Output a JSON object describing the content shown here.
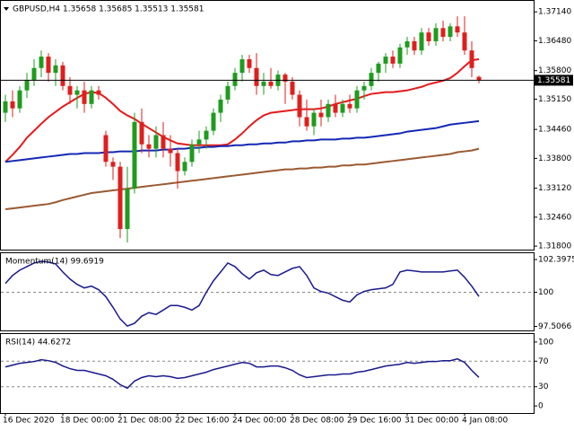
{
  "chart_data": [
    {
      "type": "candlestick",
      "title": "GBPUSD,H4  1.35658 1.35685 1.35513 1.35581",
      "categories": [
        "16 Dec 2020",
        null,
        null,
        null,
        null,
        null,
        null,
        null,
        "18 Dec 00:00",
        null,
        null,
        null,
        null,
        null,
        null,
        null,
        "21 Dec 08:00",
        null,
        null,
        null,
        null,
        null,
        null,
        null,
        "22 Dec 16:00",
        null,
        null,
        null,
        null,
        null,
        null,
        null,
        "24 Dec 00:00",
        null,
        null,
        null,
        null,
        null,
        null,
        null,
        "28 Dec 08:00",
        null,
        null,
        null,
        null,
        null,
        null,
        null,
        "29 Dec 16:00",
        null,
        null,
        null,
        null,
        null,
        null,
        null,
        "31 Dec 00:00",
        null,
        null,
        null,
        null,
        null,
        null,
        null,
        "4 Jan 08:00",
        null,
        null
      ],
      "open": [
        1.3484,
        1.351,
        1.3494,
        1.3535,
        1.3559,
        1.3586,
        1.3612,
        1.3575,
        1.3592,
        1.3545,
        1.3525,
        1.3535,
        1.3504,
        1.3535,
        1.3433,
        1.3372,
        1.3361,
        1.3219,
        1.3311,
        1.3463,
        1.3412,
        1.3402,
        1.3433,
        1.3402,
        1.3392,
        1.3351,
        1.3372,
        1.3412,
        1.3423,
        1.3443,
        1.3484,
        1.3514,
        1.3545,
        1.3575,
        1.3606,
        1.3586,
        1.3545,
        1.3555,
        1.3545,
        1.3571,
        1.3555,
        1.3525,
        1.3474,
        1.3453,
        1.3484,
        1.3474,
        1.3504,
        1.3484,
        1.3504,
        1.3494,
        1.3535,
        1.3545,
        1.3575,
        1.3596,
        1.3612,
        1.3596,
        1.3633,
        1.3647,
        1.3626,
        1.3667,
        1.3647,
        1.3677,
        1.3657,
        1.3681,
        1.3667,
        1.3626,
        1.35658
      ],
      "high": [
        1.3525,
        1.3535,
        1.3545,
        1.3575,
        1.3606,
        1.3626,
        1.362,
        1.3606,
        1.36,
        1.3565,
        1.3545,
        1.3555,
        1.3545,
        1.3545,
        1.3443,
        1.3382,
        1.3372,
        1.3361,
        1.3484,
        1.3494,
        1.3433,
        1.3453,
        1.3463,
        1.3433,
        1.3402,
        1.3382,
        1.3423,
        1.3443,
        1.3453,
        1.3494,
        1.3525,
        1.3555,
        1.3586,
        1.3616,
        1.3616,
        1.362,
        1.3575,
        1.3586,
        1.358,
        1.3575,
        1.3565,
        1.3535,
        1.3514,
        1.3494,
        1.3514,
        1.3514,
        1.3525,
        1.3514,
        1.3525,
        1.3545,
        1.3555,
        1.3586,
        1.36,
        1.362,
        1.3626,
        1.3641,
        1.3657,
        1.3657,
        1.3677,
        1.3677,
        1.3688,
        1.3694,
        1.3688,
        1.3704,
        1.3704,
        1.3647,
        1.35685
      ],
      "low": [
        1.3463,
        1.3474,
        1.3484,
        1.3518,
        1.3545,
        1.3565,
        1.3555,
        1.3545,
        1.3535,
        1.3504,
        1.3494,
        1.3484,
        1.3494,
        1.3514,
        1.3361,
        1.3331,
        1.3198,
        1.3188,
        1.33,
        1.3392,
        1.3382,
        1.3382,
        1.3382,
        1.3361,
        1.3311,
        1.3341,
        1.3361,
        1.3392,
        1.3402,
        1.3433,
        1.3463,
        1.3504,
        1.3535,
        1.3555,
        1.3575,
        1.3525,
        1.3525,
        1.3539,
        1.3535,
        1.3504,
        1.3514,
        1.3453,
        1.3443,
        1.3433,
        1.3453,
        1.3463,
        1.3474,
        1.3474,
        1.3484,
        1.3484,
        1.3514,
        1.3535,
        1.3555,
        1.3575,
        1.3586,
        1.3586,
        1.3616,
        1.3616,
        1.3616,
        1.3637,
        1.3637,
        1.3647,
        1.3647,
        1.3657,
        1.3616,
        1.3565,
        1.35513
      ],
      "close": [
        1.351,
        1.3494,
        1.3535,
        1.3559,
        1.3586,
        1.3612,
        1.3575,
        1.3592,
        1.3545,
        1.3525,
        1.3535,
        1.3504,
        1.3535,
        1.3525,
        1.3372,
        1.3361,
        1.3219,
        1.3311,
        1.3463,
        1.3412,
        1.3402,
        1.3433,
        1.3402,
        1.3392,
        1.3351,
        1.3372,
        1.3412,
        1.3423,
        1.3443,
        1.3484,
        1.3514,
        1.3545,
        1.3575,
        1.3606,
        1.3586,
        1.3545,
        1.3555,
        1.3545,
        1.3571,
        1.3555,
        1.3525,
        1.3474,
        1.3453,
        1.3484,
        1.3474,
        1.3504,
        1.3484,
        1.3504,
        1.3494,
        1.3535,
        1.3545,
        1.3575,
        1.3596,
        1.3612,
        1.3596,
        1.3633,
        1.3647,
        1.3626,
        1.3667,
        1.3647,
        1.3677,
        1.3657,
        1.3681,
        1.3667,
        1.3626,
        1.3586,
        1.35581
      ],
      "up_color": "#1e9c1e",
      "down_color": "#e01e1e",
      "series": [
        {
          "color": "#e41a1c",
          "values": [
            1.3372,
            1.3388,
            1.3406,
            1.3427,
            1.3443,
            1.3459,
            1.3474,
            1.3486,
            1.3498,
            1.3508,
            1.3518,
            1.3527,
            1.3531,
            1.3529,
            1.3518,
            1.3504,
            1.3488,
            1.3478,
            1.347,
            1.3459,
            1.3449,
            1.3439,
            1.3429,
            1.3421,
            1.3414,
            1.3412,
            1.341,
            1.341,
            1.341,
            1.341,
            1.341,
            1.3412,
            1.3423,
            1.3437,
            1.3453,
            1.3467,
            1.3478,
            1.3484,
            1.3486,
            1.3488,
            1.349,
            1.3492,
            1.3492,
            1.3492,
            1.3494,
            1.3498,
            1.3504,
            1.3508,
            1.3512,
            1.3516,
            1.3522,
            1.3527,
            1.3529,
            1.3531,
            1.3531,
            1.3533,
            1.3535,
            1.3539,
            1.3543,
            1.3549,
            1.3553,
            1.3557,
            1.3563,
            1.3575,
            1.359,
            1.3604,
            1.3606
          ]
        },
        {
          "color": "#1428b4",
          "values": [
            1.3372,
            1.3374,
            1.3376,
            1.3378,
            1.338,
            1.3382,
            1.3384,
            1.3386,
            1.3388,
            1.339,
            1.339,
            1.3392,
            1.3392,
            1.3392,
            1.3394,
            1.3394,
            1.3396,
            1.3396,
            1.3396,
            1.3398,
            1.3398,
            1.3398,
            1.34,
            1.34,
            1.3402,
            1.3402,
            1.3404,
            1.3404,
            1.3406,
            1.3406,
            1.3408,
            1.3408,
            1.341,
            1.341,
            1.3412,
            1.3412,
            1.3414,
            1.3414,
            1.3416,
            1.3416,
            1.3419,
            1.3419,
            1.3421,
            1.3421,
            1.3423,
            1.3423,
            1.3423,
            1.3425,
            1.3425,
            1.3427,
            1.3427,
            1.3429,
            1.3431,
            1.3433,
            1.3435,
            1.3437,
            1.3441,
            1.3443,
            1.3445,
            1.3447,
            1.3449,
            1.3453,
            1.3457,
            1.3459,
            1.3461,
            1.3463,
            1.3465
          ]
        },
        {
          "color": "#9a5a32",
          "values": [
            1.3264,
            1.3266,
            1.3268,
            1.327,
            1.3272,
            1.3274,
            1.3276,
            1.328,
            1.3285,
            1.3289,
            1.3293,
            1.3297,
            1.3301,
            1.3303,
            1.3305,
            1.3307,
            1.3309,
            1.3311,
            1.3313,
            1.3315,
            1.3317,
            1.3319,
            1.3321,
            1.3323,
            1.3325,
            1.3327,
            1.3329,
            1.3331,
            1.3333,
            1.3335,
            1.3337,
            1.3339,
            1.3341,
            1.3343,
            1.3345,
            1.3347,
            1.3349,
            1.3351,
            1.3353,
            1.3355,
            1.3355,
            1.3357,
            1.3357,
            1.3359,
            1.3359,
            1.3361,
            1.3361,
            1.3364,
            1.3364,
            1.3366,
            1.3366,
            1.3368,
            1.337,
            1.3372,
            1.3374,
            1.3376,
            1.3378,
            1.338,
            1.3382,
            1.3384,
            1.3386,
            1.3388,
            1.339,
            1.3394,
            1.3396,
            1.3398,
            1.3402
          ]
        }
      ],
      "current_price": 1.35581,
      "ylim": [
        1.3172,
        1.3739
      ],
      "yticks": [
        {
          "value": 1.3714,
          "label": "1.37140"
        },
        {
          "value": 1.3648,
          "label": "1.36480"
        },
        {
          "value": 1.358,
          "label": "1.35800"
        },
        {
          "value": 1.3515,
          "label": "1.35150"
        },
        {
          "value": 1.3446,
          "label": "1.34460"
        },
        {
          "value": 1.338,
          "label": "1.33800"
        },
        {
          "value": 1.3312,
          "label": "1.33120"
        },
        {
          "value": 1.3246,
          "label": "1.32460"
        },
        {
          "value": 1.318,
          "label": "1.31800"
        }
      ]
    },
    {
      "type": "line",
      "title": "Momentum(14) 99.6919",
      "color": "#1a1a8c",
      "values": [
        100.65,
        101.23,
        101.62,
        101.88,
        102.14,
        102.27,
        102.21,
        102.08,
        101.49,
        100.97,
        100.58,
        100.32,
        100.45,
        100.19,
        99.68,
        98.9,
        98.05,
        97.53,
        97.73,
        98.25,
        98.51,
        98.38,
        98.7,
        99.03,
        99.03,
        98.9,
        98.7,
        99.03,
        100,
        100.84,
        101.49,
        102.14,
        101.88,
        101.36,
        100.97,
        101.43,
        101.62,
        101.3,
        101.23,
        101.49,
        101.75,
        101.88,
        101.23,
        100.32,
        100.06,
        99.94,
        99.68,
        99.42,
        99.29,
        99.81,
        100.06,
        100.19,
        100.26,
        100.32,
        100.58,
        101.49,
        101.62,
        101.56,
        101.49,
        101.49,
        101.49,
        101.49,
        101.56,
        101.62,
        101.1,
        100.45,
        99.6919
      ],
      "levels": [
        100
      ],
      "ylim": [
        97.21,
        102.86
      ],
      "yticks": [
        102.3975,
        100,
        97.5066
      ]
    },
    {
      "type": "line",
      "title": "RSI(14) 44.6272",
      "color": "#1a1a8c",
      "values": [
        61.1,
        63.9,
        66.7,
        68.1,
        69.4,
        72.2,
        70.8,
        68.1,
        62.5,
        58.3,
        55.6,
        55.6,
        52.8,
        50,
        47.2,
        41.7,
        33.3,
        27.8,
        38.9,
        44.4,
        47.2,
        45.8,
        47.2,
        45.8,
        43.1,
        44.4,
        47.2,
        50,
        52.8,
        56.9,
        59.7,
        62.5,
        65.3,
        68.1,
        66.7,
        61.1,
        61.1,
        62.5,
        62.5,
        59.7,
        55.6,
        48.6,
        44.4,
        45.8,
        47.2,
        48.6,
        48.6,
        50,
        50,
        52.8,
        54.2,
        56.9,
        59.7,
        62.5,
        63.9,
        65.3,
        68.1,
        66.7,
        68.1,
        69.4,
        69.4,
        70.8,
        70.8,
        73.6,
        68.1,
        55.6,
        44.6272
      ],
      "levels": [
        70,
        30
      ],
      "ylim": [
        -11.1,
        112.5
      ],
      "yticks": [
        100,
        70,
        30,
        0
      ]
    }
  ]
}
